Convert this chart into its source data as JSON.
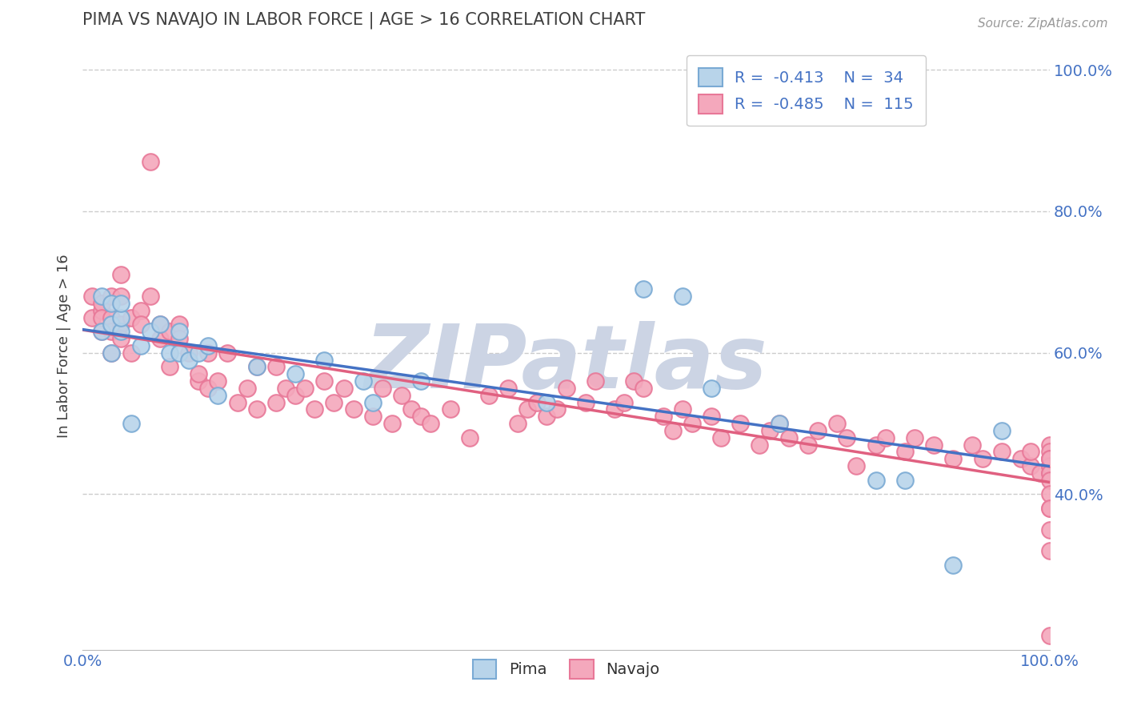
{
  "title": "PIMA VS NAVAJO IN LABOR FORCE | AGE > 16 CORRELATION CHART",
  "source_text": "Source: ZipAtlas.com",
  "ylabel": "In Labor Force | Age > 16",
  "xlim": [
    0.0,
    1.0
  ],
  "ylim": [
    0.18,
    1.04
  ],
  "x_ticks": [
    0.0,
    0.2,
    0.4,
    0.6,
    0.8,
    1.0
  ],
  "x_tick_labels": [
    "0.0%",
    "",
    "",
    "",
    "",
    "100.0%"
  ],
  "y_ticks": [
    0.4,
    0.6,
    0.8,
    1.0
  ],
  "y_tick_labels": [
    "40.0%",
    "60.0%",
    "80.0%",
    "100.0%"
  ],
  "pima_color": "#b8d4ea",
  "pima_edge_color": "#7aaad4",
  "navajo_color": "#f4a8bc",
  "navajo_edge_color": "#e87898",
  "pima_line_color": "#4472C4",
  "navajo_line_color": "#E06080",
  "R_pima": -0.413,
  "N_pima": 34,
  "R_navajo": -0.485,
  "N_navajo": 115,
  "background_color": "#ffffff",
  "grid_color": "#cccccc",
  "title_color": "#404040",
  "axis_label_color": "#404040",
  "tick_label_color": "#4472C4",
  "legend_R_color": "#4472C4",
  "watermark_color": "#ccd4e4",
  "pima_x": [
    0.02,
    0.02,
    0.03,
    0.03,
    0.03,
    0.04,
    0.04,
    0.04,
    0.05,
    0.06,
    0.07,
    0.08,
    0.09,
    0.1,
    0.1,
    0.11,
    0.12,
    0.13,
    0.14,
    0.18,
    0.22,
    0.25,
    0.29,
    0.3,
    0.35,
    0.48,
    0.58,
    0.62,
    0.65,
    0.72,
    0.82,
    0.85,
    0.9,
    0.95
  ],
  "pima_y": [
    0.68,
    0.63,
    0.67,
    0.64,
    0.6,
    0.63,
    0.65,
    0.67,
    0.5,
    0.61,
    0.63,
    0.64,
    0.6,
    0.63,
    0.6,
    0.59,
    0.6,
    0.61,
    0.54,
    0.58,
    0.57,
    0.59,
    0.56,
    0.53,
    0.56,
    0.53,
    0.69,
    0.68,
    0.55,
    0.5,
    0.42,
    0.42,
    0.3,
    0.49
  ],
  "navajo_x": [
    0.01,
    0.01,
    0.02,
    0.02,
    0.02,
    0.02,
    0.03,
    0.03,
    0.03,
    0.03,
    0.04,
    0.04,
    0.04,
    0.04,
    0.05,
    0.05,
    0.06,
    0.06,
    0.07,
    0.07,
    0.08,
    0.08,
    0.09,
    0.09,
    0.1,
    0.1,
    0.11,
    0.12,
    0.12,
    0.13,
    0.13,
    0.14,
    0.15,
    0.16,
    0.17,
    0.18,
    0.18,
    0.2,
    0.2,
    0.21,
    0.22,
    0.23,
    0.24,
    0.25,
    0.26,
    0.27,
    0.28,
    0.3,
    0.31,
    0.32,
    0.33,
    0.34,
    0.35,
    0.36,
    0.38,
    0.4,
    0.42,
    0.44,
    0.45,
    0.46,
    0.47,
    0.48,
    0.49,
    0.5,
    0.52,
    0.53,
    0.55,
    0.56,
    0.57,
    0.58,
    0.6,
    0.61,
    0.62,
    0.63,
    0.65,
    0.66,
    0.68,
    0.7,
    0.71,
    0.72,
    0.73,
    0.75,
    0.76,
    0.78,
    0.79,
    0.8,
    0.82,
    0.83,
    0.85,
    0.86,
    0.88,
    0.9,
    0.92,
    0.93,
    0.95,
    0.97,
    0.98,
    0.98,
    0.99,
    1.0,
    1.0,
    1.0,
    1.0,
    1.0,
    1.0,
    1.0,
    1.0,
    1.0,
    1.0,
    1.0,
    1.0,
    1.0,
    1.0,
    1.0,
    1.0
  ],
  "navajo_y": [
    0.65,
    0.68,
    0.66,
    0.67,
    0.63,
    0.65,
    0.68,
    0.65,
    0.63,
    0.6,
    0.64,
    0.62,
    0.68,
    0.71,
    0.65,
    0.6,
    0.66,
    0.64,
    0.87,
    0.68,
    0.62,
    0.64,
    0.58,
    0.63,
    0.64,
    0.62,
    0.6,
    0.56,
    0.57,
    0.55,
    0.6,
    0.56,
    0.6,
    0.53,
    0.55,
    0.58,
    0.52,
    0.58,
    0.53,
    0.55,
    0.54,
    0.55,
    0.52,
    0.56,
    0.53,
    0.55,
    0.52,
    0.51,
    0.55,
    0.5,
    0.54,
    0.52,
    0.51,
    0.5,
    0.52,
    0.48,
    0.54,
    0.55,
    0.5,
    0.52,
    0.53,
    0.51,
    0.52,
    0.55,
    0.53,
    0.56,
    0.52,
    0.53,
    0.56,
    0.55,
    0.51,
    0.49,
    0.52,
    0.5,
    0.51,
    0.48,
    0.5,
    0.47,
    0.49,
    0.5,
    0.48,
    0.47,
    0.49,
    0.5,
    0.48,
    0.44,
    0.47,
    0.48,
    0.46,
    0.48,
    0.47,
    0.45,
    0.47,
    0.45,
    0.46,
    0.45,
    0.44,
    0.46,
    0.43,
    0.47,
    0.45,
    0.46,
    0.44,
    0.43,
    0.45,
    0.44,
    0.43,
    0.45,
    0.42,
    0.38,
    0.35,
    0.4,
    0.32,
    0.2,
    0.38
  ]
}
